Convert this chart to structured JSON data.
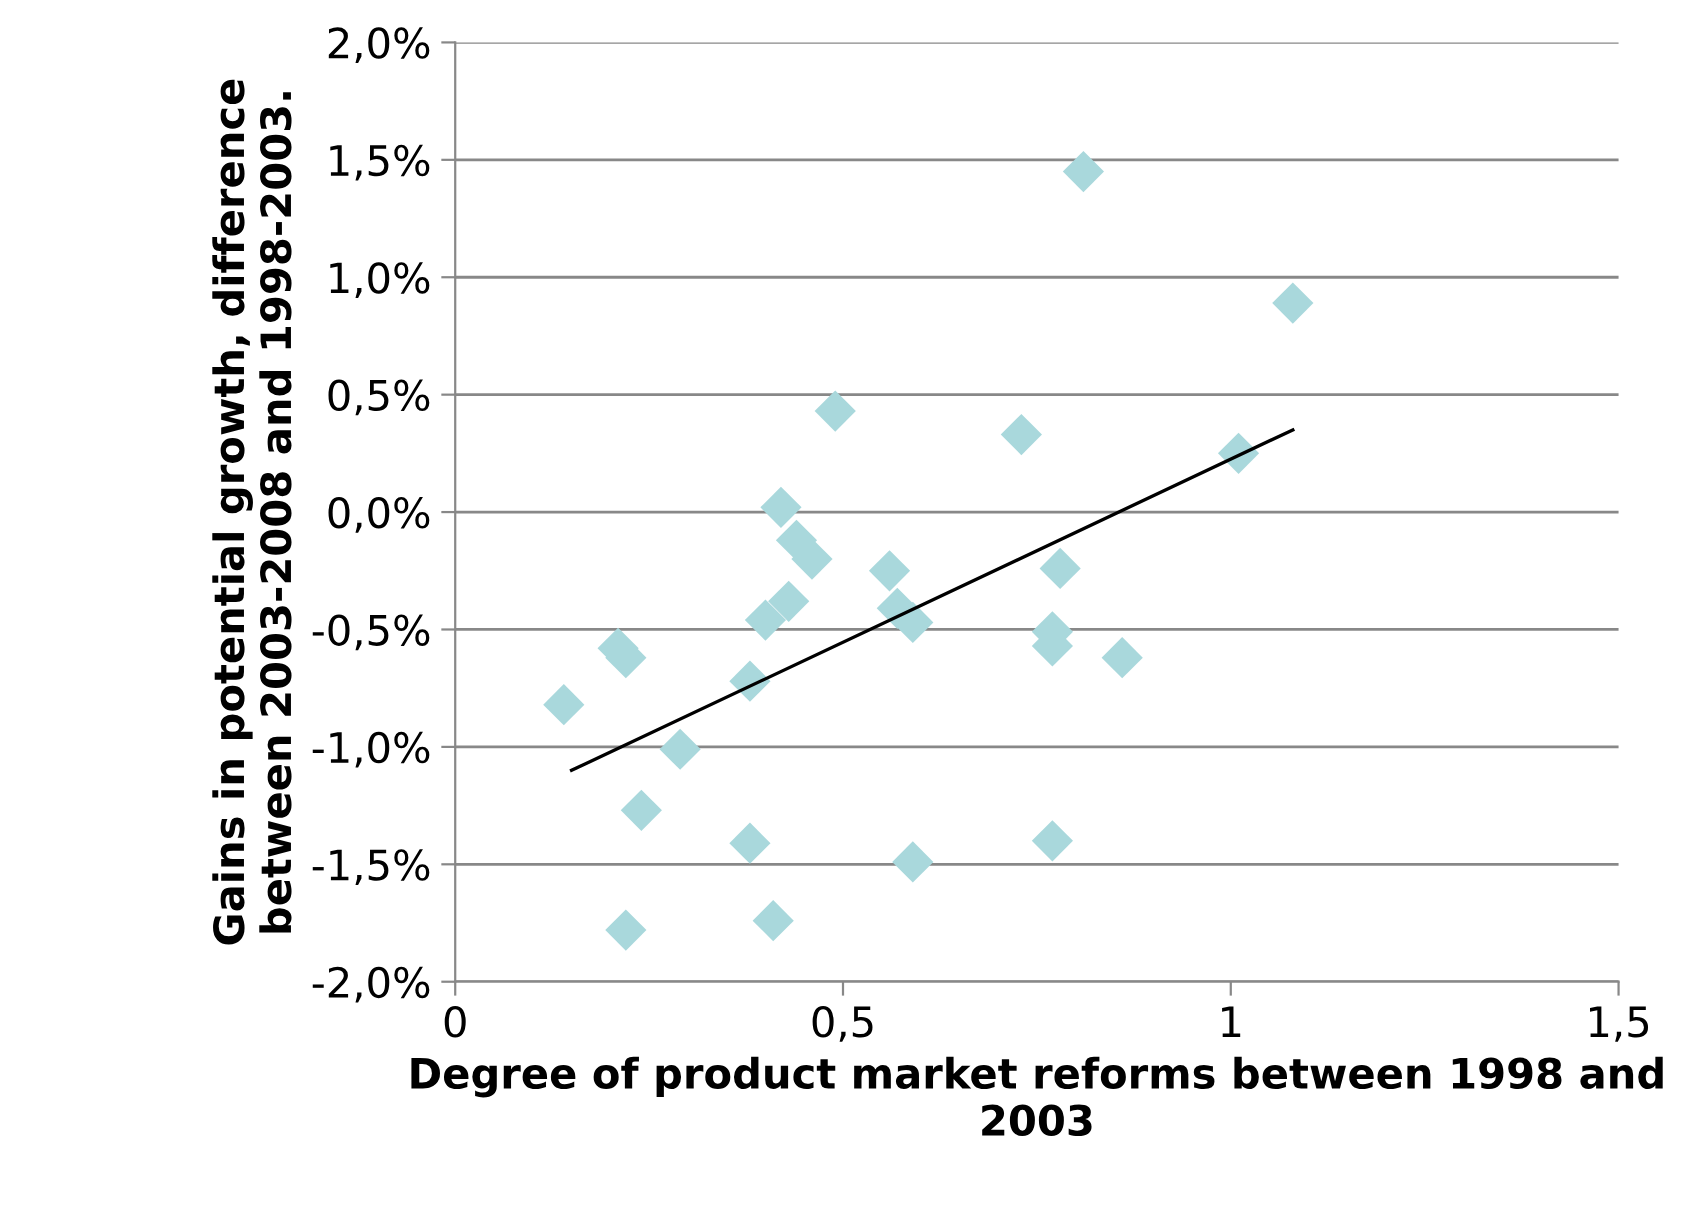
{
  "chart_data": {
    "type": "scatter",
    "xlabel": "Degree of product market reforms between 1998 and 2003",
    "ylabel": "Gains in potential growth, difference between 2003-2008 and 1998-2003.",
    "xlim": [
      0,
      1.5
    ],
    "ylim": [
      -2.0,
      2.0
    ],
    "xticks": [
      0,
      {
        "value": 0.5,
        "label": "0,5"
      },
      1,
      {
        "value": 1.5,
        "label": "1,5"
      }
    ],
    "yticks": [
      {
        "value": -2.0,
        "label": "-2,0%"
      },
      {
        "value": -1.5,
        "label": "-1,5%"
      },
      {
        "value": -1.0,
        "label": "-1,0%"
      },
      {
        "value": -0.5,
        "label": "-0,5%"
      },
      {
        "value": 0.0,
        "label": "0,0%"
      },
      {
        "value": 0.5,
        "label": "0,5%"
      },
      {
        "value": 1.0,
        "label": "1,0%"
      },
      {
        "value": 1.5,
        "label": "1,5%"
      },
      {
        "value": 2.0,
        "label": "2,0%"
      }
    ],
    "grid": "y",
    "marker": "diamond",
    "series": [
      {
        "color": "#a9d8dc",
        "x": [
          0.81,
          1.08,
          0.49,
          0.73,
          1.01,
          0.42,
          0.44,
          0.46,
          0.56,
          0.78,
          0.43,
          0.4,
          0.57,
          0.59,
          0.77,
          0.77,
          0.86,
          0.21,
          0.22,
          0.38,
          0.14,
          0.29,
          0.24,
          0.38,
          0.77,
          0.59,
          0.41,
          0.22
        ],
        "values": [
          1.45,
          0.89,
          0.43,
          0.33,
          0.25,
          0.02,
          -0.12,
          -0.2,
          -0.25,
          -0.24,
          -0.38,
          -0.46,
          -0.41,
          -0.47,
          -0.51,
          -0.57,
          -0.62,
          -0.58,
          -0.62,
          -0.72,
          -0.82,
          -1.01,
          -1.27,
          -1.41,
          -1.4,
          -1.49,
          -1.74,
          -1.78
        ]
      },
      {
        "type": "line",
        "color": "#000000",
        "marker": "none",
        "x": [
          0.15,
          1.08
        ],
        "values": [
          -1.1,
          0.35
        ]
      }
    ]
  }
}
